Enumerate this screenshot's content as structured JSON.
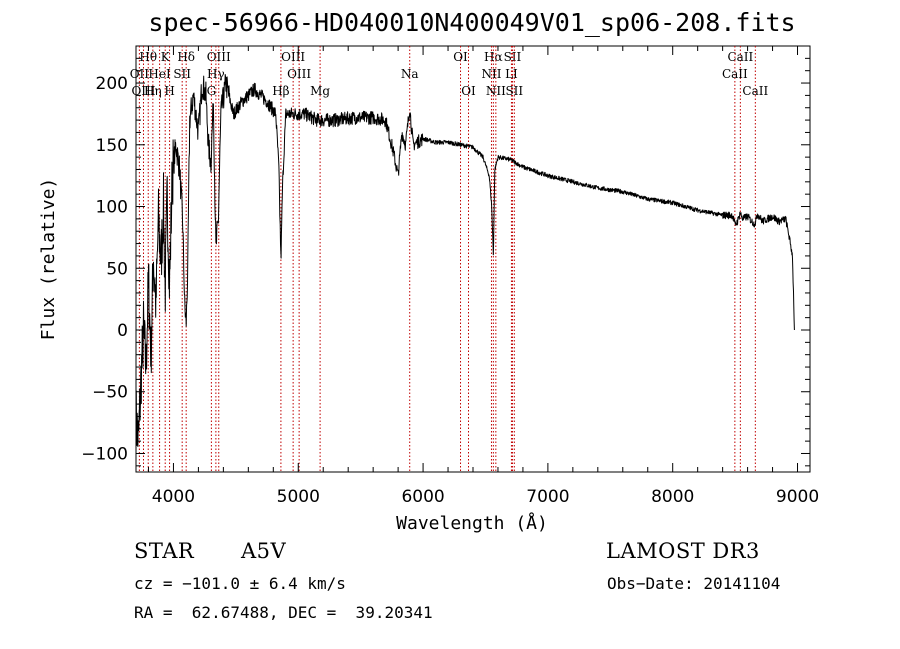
{
  "chart_data": {
    "type": "line",
    "title": "spec-56966-HD040010N400049V01_sp06-208.fits",
    "xlabel": "Wavelength (Å)",
    "ylabel": "Flux (relative)",
    "xlim": [
      3700,
      9100
    ],
    "ylim": [
      -115,
      230
    ],
    "xticks": [
      4000,
      5000,
      6000,
      7000,
      8000,
      9000
    ],
    "yticks": [
      -100,
      -50,
      0,
      50,
      100,
      150,
      200
    ],
    "yticklabels": [
      "−100",
      "−50",
      "0",
      "50",
      "100",
      "150",
      "200"
    ],
    "spectral_lines": [
      {
        "label": "Hθ",
        "wavelength": 3798,
        "row": 0
      },
      {
        "label": "OII",
        "wavelength": 3727,
        "row": 1
      },
      {
        "label": "OIII",
        "wavelength": 3760,
        "row": 2
      },
      {
        "label": "Hη",
        "wavelength": 3835,
        "row": 2
      },
      {
        "label": "K",
        "wavelength": 3934,
        "row": 0
      },
      {
        "label": "HeI",
        "wavelength": 3889,
        "row": 1
      },
      {
        "label": "H",
        "wavelength": 3969,
        "row": 2
      },
      {
        "label": "SII",
        "wavelength": 4070,
        "row": 1
      },
      {
        "label": "Hδ",
        "wavelength": 4102,
        "row": 0
      },
      {
        "label": "OIII",
        "wavelength": 4363,
        "row": 0
      },
      {
        "label": "Hγ",
        "wavelength": 4340,
        "row": 1
      },
      {
        "label": "G",
        "wavelength": 4304,
        "row": 2
      },
      {
        "label": "Hβ",
        "wavelength": 4861,
        "row": 2
      },
      {
        "label": "OIII",
        "wavelength": 4959,
        "row": 0
      },
      {
        "label": "OIII",
        "wavelength": 5007,
        "row": 1
      },
      {
        "label": "Mg",
        "wavelength": 5175,
        "row": 2
      },
      {
        "label": "Na",
        "wavelength": 5893,
        "row": 1
      },
      {
        "label": "OI",
        "wavelength": 6300,
        "row": 0
      },
      {
        "label": "OI",
        "wavelength": 6364,
        "row": 2
      },
      {
        "label": "Hα",
        "wavelength": 6563,
        "row": 0
      },
      {
        "label": "NII",
        "wavelength": 6548,
        "row": 1
      },
      {
        "label": "NII",
        "wavelength": 6583,
        "row": 2
      },
      {
        "label": "SII",
        "wavelength": 6716,
        "row": 0
      },
      {
        "label": "LI",
        "wavelength": 6708,
        "row": 1
      },
      {
        "label": "SII",
        "wavelength": 6731,
        "row": 2
      },
      {
        "label": "CaII",
        "wavelength": 8542,
        "row": 0
      },
      {
        "label": "CaII",
        "wavelength": 8498,
        "row": 1
      },
      {
        "label": "CaII",
        "wavelength": 8662,
        "row": 2
      }
    ],
    "spectrum": {
      "x": [
        3700,
        3720,
        3740,
        3760,
        3780,
        3800,
        3820,
        3840,
        3860,
        3880,
        3900,
        3920,
        3934,
        3950,
        3969,
        3990,
        4020,
        4050,
        4075,
        4090,
        4102,
        4115,
        4130,
        4160,
        4200,
        4230,
        4260,
        4280,
        4300,
        4320,
        4340,
        4360,
        4380,
        4420,
        4480,
        4550,
        4650,
        4750,
        4820,
        4845,
        4861,
        4875,
        4900,
        4960,
        5050,
        5150,
        5300,
        5450,
        5600,
        5700,
        5760,
        5800,
        5830,
        5860,
        5893,
        5920,
        6000,
        6100,
        6200,
        6300,
        6400,
        6480,
        6530,
        6550,
        6563,
        6575,
        6600,
        6700,
        6800,
        7000,
        7200,
        7400,
        7600,
        7800,
        8000,
        8200,
        8400,
        8480,
        8500,
        8520,
        8540,
        8560,
        8600,
        8650,
        8662,
        8680,
        8720,
        8800,
        8850,
        8880,
        8905,
        8925,
        8960,
        8975
      ],
      "y": [
        -70,
        -90,
        -40,
        0,
        -30,
        40,
        -20,
        60,
        20,
        90,
        55,
        100,
        30,
        110,
        35,
        125,
        150,
        130,
        85,
        20,
        5,
        50,
        170,
        190,
        160,
        200,
        190,
        150,
        135,
        185,
        65,
        90,
        175,
        200,
        175,
        185,
        195,
        185,
        175,
        130,
        55,
        120,
        175,
        175,
        175,
        170,
        170,
        172,
        172,
        170,
        145,
        125,
        160,
        150,
        180,
        150,
        155,
        152,
        152,
        150,
        148,
        140,
        125,
        100,
        60,
        130,
        140,
        138,
        132,
        125,
        120,
        115,
        112,
        106,
        103,
        97,
        93,
        93,
        85,
        88,
        95,
        90,
        92,
        86,
        87,
        94,
        88,
        92,
        88,
        89,
        90,
        80,
        60,
        0
      ]
    }
  },
  "info": {
    "object_type": "STAR",
    "subclass": "A5V",
    "survey": "LAMOST DR3",
    "cz": "cz = −101.0 ± 6.4 km/s",
    "obs_date": "Obs−Date: 20141104",
    "coords": "RA =  62.67488, DEC =  39.20341"
  }
}
